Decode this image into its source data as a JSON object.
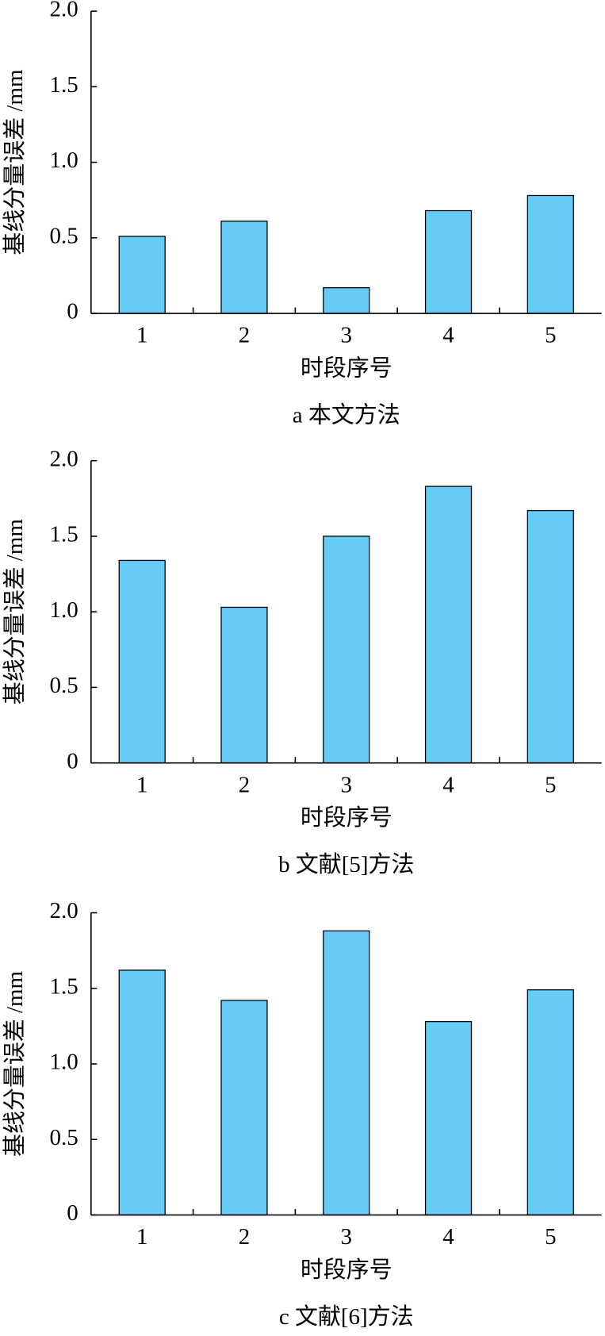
{
  "chart_data": [
    {
      "type": "bar",
      "caption": "a 本文方法",
      "x_label": "时段序号",
      "y_label": "基线分量误差 /mm",
      "categories": [
        "1",
        "2",
        "3",
        "4",
        "5"
      ],
      "values": [
        0.51,
        0.61,
        0.17,
        0.68,
        0.78
      ],
      "color": "#66ccf5",
      "ylim": [
        0,
        2
      ],
      "yticks": [
        0,
        0.5,
        {
          "value": 1,
          "label": "1.0"
        },
        1.5,
        {
          "value": 2,
          "label": "2.0"
        }
      ]
    },
    {
      "type": "bar",
      "caption": "b 文献[5]方法",
      "x_label": "时段序号",
      "y_label": "基线分量误差 /mm",
      "categories": [
        "1",
        "2",
        "3",
        "4",
        "5"
      ],
      "values": [
        1.34,
        1.03,
        1.5,
        1.83,
        1.67
      ],
      "color": "#66ccf5",
      "ylim": [
        0,
        2
      ],
      "yticks": [
        0,
        0.5,
        {
          "value": 1,
          "label": "1.0"
        },
        1.5,
        {
          "value": 2,
          "label": "2.0"
        }
      ]
    },
    {
      "type": "bar",
      "caption": "c 文献[6]方法",
      "x_label": "时段序号",
      "y_label": "基线分量误差 /mm",
      "categories": [
        "1",
        "2",
        "3",
        "4",
        "5"
      ],
      "values": [
        1.62,
        1.42,
        1.88,
        1.28,
        1.49
      ],
      "color": "#66ccf5",
      "ylim": [
        0,
        2
      ],
      "yticks": [
        0,
        0.5,
        {
          "value": 1,
          "label": "1.0"
        },
        1.5,
        {
          "value": 2,
          "label": "2.0"
        }
      ]
    }
  ]
}
